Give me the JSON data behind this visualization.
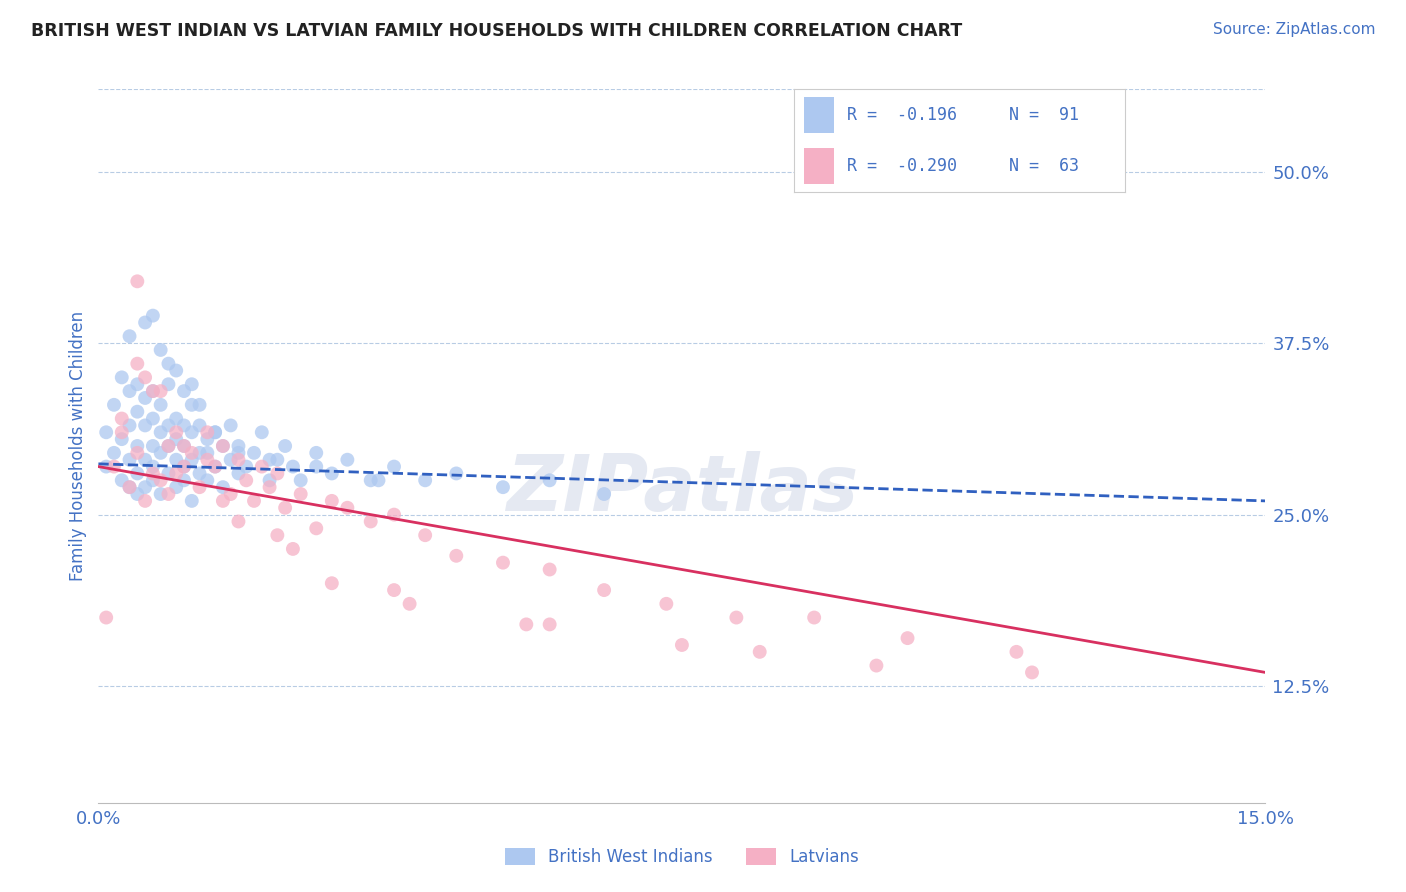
{
  "title": "BRITISH WEST INDIAN VS LATVIAN FAMILY HOUSEHOLDS WITH CHILDREN CORRELATION CHART",
  "source_text": "Source: ZipAtlas.com",
  "ylabel": "Family Households with Children",
  "ytick_labels": [
    "12.5%",
    "25.0%",
    "37.5%",
    "50.0%"
  ],
  "ytick_values": [
    0.125,
    0.25,
    0.375,
    0.5
  ],
  "xlim": [
    0.0,
    0.15
  ],
  "ylim": [
    0.04,
    0.56
  ],
  "watermark": "ZIPatlas",
  "legend_r1": "R =  -0.196",
  "legend_n1": "N =  91",
  "legend_r2": "R =  -0.290",
  "legend_n2": "N =  63",
  "legend_label1": "British West Indians",
  "legend_label2": "Latvians",
  "color_blue": "#adc8f0",
  "color_pink": "#f5b0c5",
  "color_blue_line": "#3060c0",
  "color_pink_line": "#d83060",
  "color_text_blue": "#4472c4",
  "background_color": "#ffffff",
  "grid_color": "#b8cce4",
  "blue_trend_x0": 0.0,
  "blue_trend_y0": 0.287,
  "blue_trend_x1": 0.15,
  "blue_trend_y1": 0.26,
  "pink_trend_x0": 0.0,
  "pink_trend_y0": 0.285,
  "pink_trend_x1": 0.15,
  "pink_trend_y1": 0.135,
  "blue_scatter_x": [
    0.001,
    0.001,
    0.002,
    0.002,
    0.003,
    0.003,
    0.003,
    0.004,
    0.004,
    0.004,
    0.004,
    0.005,
    0.005,
    0.005,
    0.005,
    0.005,
    0.006,
    0.006,
    0.006,
    0.006,
    0.007,
    0.007,
    0.007,
    0.007,
    0.007,
    0.008,
    0.008,
    0.008,
    0.008,
    0.009,
    0.009,
    0.009,
    0.009,
    0.01,
    0.01,
    0.01,
    0.01,
    0.011,
    0.011,
    0.011,
    0.011,
    0.012,
    0.012,
    0.012,
    0.012,
    0.013,
    0.013,
    0.013,
    0.014,
    0.014,
    0.014,
    0.015,
    0.015,
    0.016,
    0.016,
    0.017,
    0.017,
    0.018,
    0.018,
    0.019,
    0.02,
    0.021,
    0.022,
    0.023,
    0.024,
    0.025,
    0.026,
    0.028,
    0.03,
    0.032,
    0.035,
    0.038,
    0.042,
    0.046,
    0.052,
    0.058,
    0.065,
    0.004,
    0.006,
    0.007,
    0.008,
    0.009,
    0.01,
    0.011,
    0.012,
    0.013,
    0.015,
    0.018,
    0.022,
    0.028,
    0.036
  ],
  "blue_scatter_y": [
    0.285,
    0.31,
    0.295,
    0.33,
    0.305,
    0.275,
    0.35,
    0.315,
    0.29,
    0.34,
    0.27,
    0.325,
    0.3,
    0.28,
    0.345,
    0.265,
    0.315,
    0.29,
    0.335,
    0.27,
    0.34,
    0.3,
    0.275,
    0.32,
    0.285,
    0.31,
    0.295,
    0.265,
    0.33,
    0.315,
    0.28,
    0.3,
    0.345,
    0.29,
    0.32,
    0.27,
    0.305,
    0.315,
    0.285,
    0.3,
    0.275,
    0.33,
    0.29,
    0.31,
    0.26,
    0.295,
    0.315,
    0.28,
    0.305,
    0.275,
    0.295,
    0.285,
    0.31,
    0.3,
    0.27,
    0.29,
    0.315,
    0.28,
    0.3,
    0.285,
    0.295,
    0.31,
    0.275,
    0.29,
    0.3,
    0.285,
    0.275,
    0.295,
    0.28,
    0.29,
    0.275,
    0.285,
    0.275,
    0.28,
    0.27,
    0.275,
    0.265,
    0.38,
    0.39,
    0.395,
    0.37,
    0.36,
    0.355,
    0.34,
    0.345,
    0.33,
    0.31,
    0.295,
    0.29,
    0.285,
    0.275
  ],
  "pink_scatter_x": [
    0.001,
    0.002,
    0.003,
    0.004,
    0.005,
    0.005,
    0.006,
    0.007,
    0.007,
    0.008,
    0.009,
    0.009,
    0.01,
    0.011,
    0.012,
    0.013,
    0.014,
    0.015,
    0.016,
    0.017,
    0.018,
    0.019,
    0.02,
    0.021,
    0.022,
    0.023,
    0.024,
    0.026,
    0.028,
    0.03,
    0.032,
    0.035,
    0.038,
    0.042,
    0.046,
    0.052,
    0.058,
    0.065,
    0.073,
    0.082,
    0.092,
    0.104,
    0.118,
    0.005,
    0.008,
    0.011,
    0.014,
    0.018,
    0.023,
    0.03,
    0.04,
    0.055,
    0.075,
    0.1,
    0.003,
    0.006,
    0.01,
    0.016,
    0.025,
    0.038,
    0.058,
    0.085,
    0.12
  ],
  "pink_scatter_y": [
    0.175,
    0.285,
    0.31,
    0.27,
    0.295,
    0.42,
    0.26,
    0.28,
    0.34,
    0.275,
    0.3,
    0.265,
    0.31,
    0.285,
    0.295,
    0.27,
    0.31,
    0.285,
    0.3,
    0.265,
    0.29,
    0.275,
    0.26,
    0.285,
    0.27,
    0.28,
    0.255,
    0.265,
    0.24,
    0.26,
    0.255,
    0.245,
    0.25,
    0.235,
    0.22,
    0.215,
    0.21,
    0.195,
    0.185,
    0.175,
    0.175,
    0.16,
    0.15,
    0.36,
    0.34,
    0.3,
    0.29,
    0.245,
    0.235,
    0.2,
    0.185,
    0.17,
    0.155,
    0.14,
    0.32,
    0.35,
    0.28,
    0.26,
    0.225,
    0.195,
    0.17,
    0.15,
    0.135
  ]
}
